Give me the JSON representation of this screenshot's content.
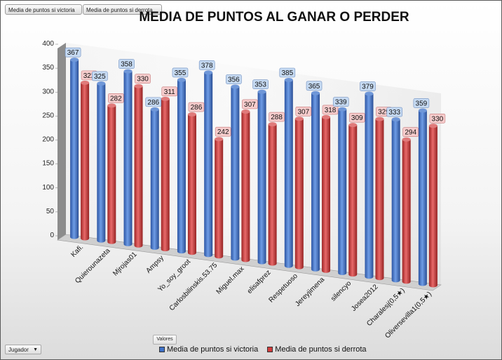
{
  "field_buttons": {
    "victoria": "Media de puntos si victoria",
    "derrota": "Media de puntos si derrota"
  },
  "axis_buttons": {
    "valores": "Valores",
    "jugador": "Jugador"
  },
  "colors": {
    "victoria": "#3f72c9",
    "derrota": "#d23c3c",
    "label_blue_bg": "#c6daf2",
    "label_red_bg": "#f6cccc"
  },
  "chart_data": {
    "type": "bar",
    "title": "MEDIA DE PUNTOS AL GANAR O PERDER",
    "xlabel": "",
    "ylabel": "",
    "ylim": [
      0,
      400
    ],
    "yticks": [
      0,
      50,
      100,
      150,
      200,
      250,
      300,
      350,
      400
    ],
    "grid": false,
    "legend_position": "bottom",
    "categories": [
      "Kafi.",
      "Quierounazeta",
      "Mjrojas01",
      "Ampsy",
      "Yo_soy_groot",
      "Carlosbilinskis.53.75",
      "Miguel.max",
      "elisafprez",
      "Respetuoso",
      "Jereyjimena",
      "silencyo",
      "Josea2012",
      "Charalesj(0,5★)",
      "Oliversevilla1(0,5★)"
    ],
    "series": [
      {
        "name": "Media de puntos si victoria",
        "values": [
          367,
          325,
          358,
          286,
          355,
          378,
          356,
          353,
          385,
          365,
          339,
          379,
          333,
          359
        ]
      },
      {
        "name": "Media de puntos si derrota",
        "values": [
          322,
          282,
          330,
          311,
          286,
          242,
          307,
          288,
          307,
          318,
          309,
          329,
          294,
          330
        ]
      }
    ]
  }
}
